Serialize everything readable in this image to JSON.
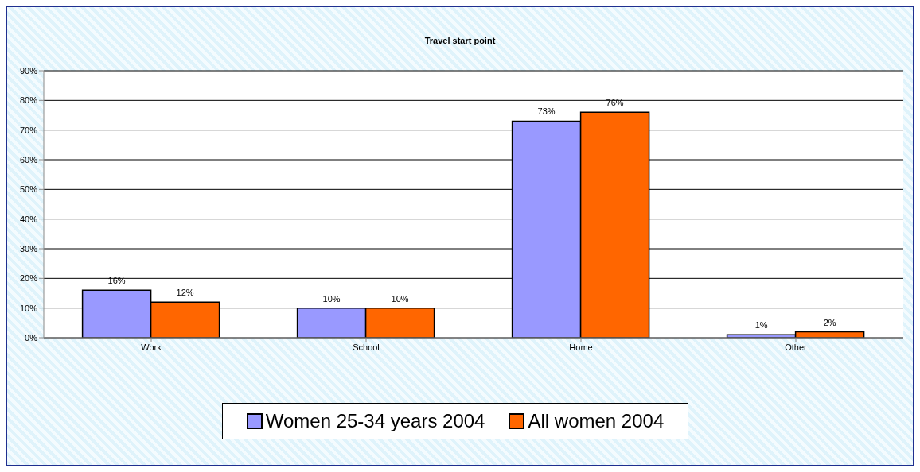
{
  "chart_data": {
    "type": "bar",
    "title": "Travel start point",
    "categories": [
      "Work",
      "School",
      "Home",
      "Other"
    ],
    "series": [
      {
        "name": "Women 25-34 years 2004",
        "color": "#9999ff",
        "values": [
          16,
          10,
          73,
          1
        ],
        "value_labels": [
          "16%",
          "10%",
          "73%",
          "1%"
        ]
      },
      {
        "name": "All women 2004",
        "color": "#ff6600",
        "values": [
          12,
          10,
          76,
          2
        ],
        "value_labels": [
          "12%",
          "10%",
          "76%",
          "2%"
        ]
      }
    ],
    "ylim": [
      0,
      90
    ],
    "yticks": [
      {
        "value": 0,
        "label": "0%"
      },
      {
        "value": 10,
        "label": "10%"
      },
      {
        "value": 20,
        "label": "20%"
      },
      {
        "value": 30,
        "label": "30%"
      },
      {
        "value": 40,
        "label": "40%"
      },
      {
        "value": 50,
        "label": "50%"
      },
      {
        "value": 60,
        "label": "60%"
      },
      {
        "value": 70,
        "label": "70%"
      },
      {
        "value": 80,
        "label": "80%"
      },
      {
        "value": 90,
        "label": "90%"
      }
    ],
    "grid": "y",
    "legend": "bottom"
  }
}
